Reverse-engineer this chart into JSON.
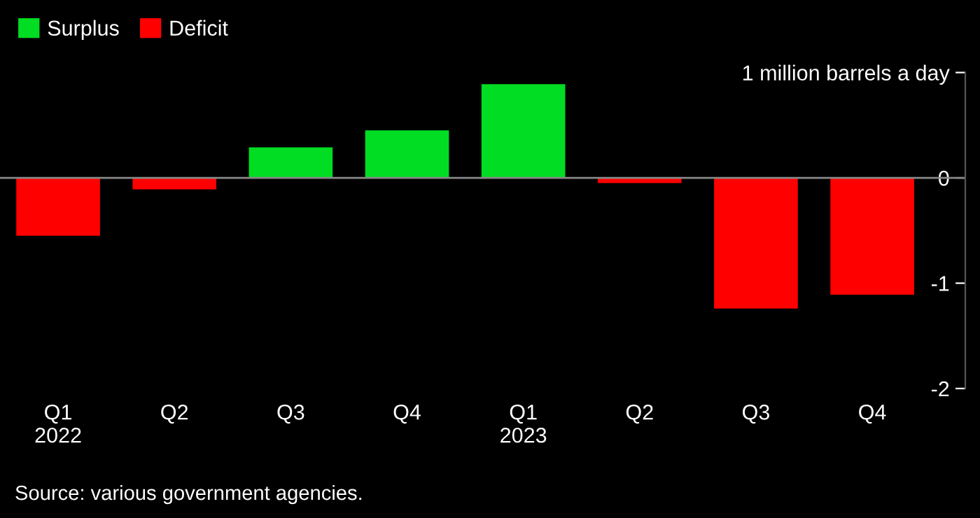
{
  "chart_data": {
    "type": "bar",
    "categories": [
      "Q1\n2022",
      "Q2",
      "Q3",
      "Q4",
      "Q1\n2023",
      "Q2",
      "Q3",
      "Q4"
    ],
    "series": [
      {
        "name": "Surplus",
        "color": "#00dd22",
        "values": [
          null,
          null,
          0.29,
          0.45,
          0.89,
          null,
          null,
          null
        ]
      },
      {
        "name": "Deficit",
        "color": "#ff0000",
        "values": [
          -0.55,
          -0.11,
          null,
          null,
          null,
          -0.05,
          -1.24,
          -1.11
        ]
      }
    ],
    "ylim": [
      -2,
      1
    ],
    "yticks": [
      {
        "value": 1,
        "label": "1 million barrels a day"
      },
      0,
      -1,
      -2
    ],
    "ref_lines": [
      {
        "axis": "y",
        "value": 0,
        "color": "#888888"
      }
    ],
    "legend": "top left",
    "grid": false,
    "annotations": [
      "Source: various government agencies."
    ]
  }
}
